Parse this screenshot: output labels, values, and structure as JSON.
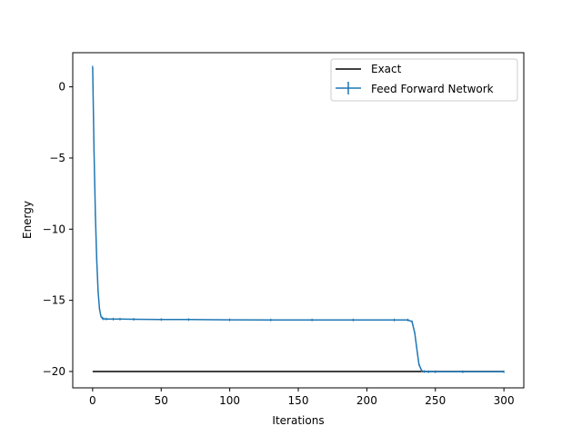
{
  "chart_data": {
    "type": "line",
    "title": "",
    "xlabel": "Iterations",
    "ylabel": "Energy",
    "xlim": [
      -14.5,
      314.5
    ],
    "ylim": [
      -21.15,
      2.4
    ],
    "xticks": [
      0,
      50,
      100,
      150,
      200,
      250,
      300
    ],
    "yticks": [
      0,
      -5,
      -10,
      -15,
      -20
    ],
    "ytick_labels": [
      "0",
      "−5",
      "−10",
      "−15",
      "−20"
    ],
    "grid": false,
    "legend_position": "top-right",
    "series": [
      {
        "name": "Exact",
        "color": "#000000",
        "style": "line",
        "x": [
          0,
          300
        ],
        "y": [
          -20.0,
          -20.0
        ]
      },
      {
        "name": "Feed Forward Network",
        "color": "#1f77b4",
        "style": "line-errorbar",
        "x": [
          0,
          1,
          2,
          3,
          4,
          5,
          6,
          7,
          8,
          10,
          15,
          20,
          30,
          50,
          70,
          100,
          130,
          160,
          190,
          220,
          230,
          233,
          235,
          237,
          238,
          240,
          242,
          245,
          250,
          270,
          300
        ],
        "y": [
          1.4,
          -4.5,
          -9.0,
          -12.2,
          -14.4,
          -15.6,
          -16.1,
          -16.25,
          -16.3,
          -16.31,
          -16.32,
          -16.32,
          -16.33,
          -16.35,
          -16.35,
          -16.37,
          -16.38,
          -16.38,
          -16.38,
          -16.38,
          -16.38,
          -16.5,
          -17.3,
          -18.8,
          -19.5,
          -19.95,
          -20.0,
          -20.02,
          -20.02,
          -20.02,
          -20.02
        ]
      }
    ]
  }
}
